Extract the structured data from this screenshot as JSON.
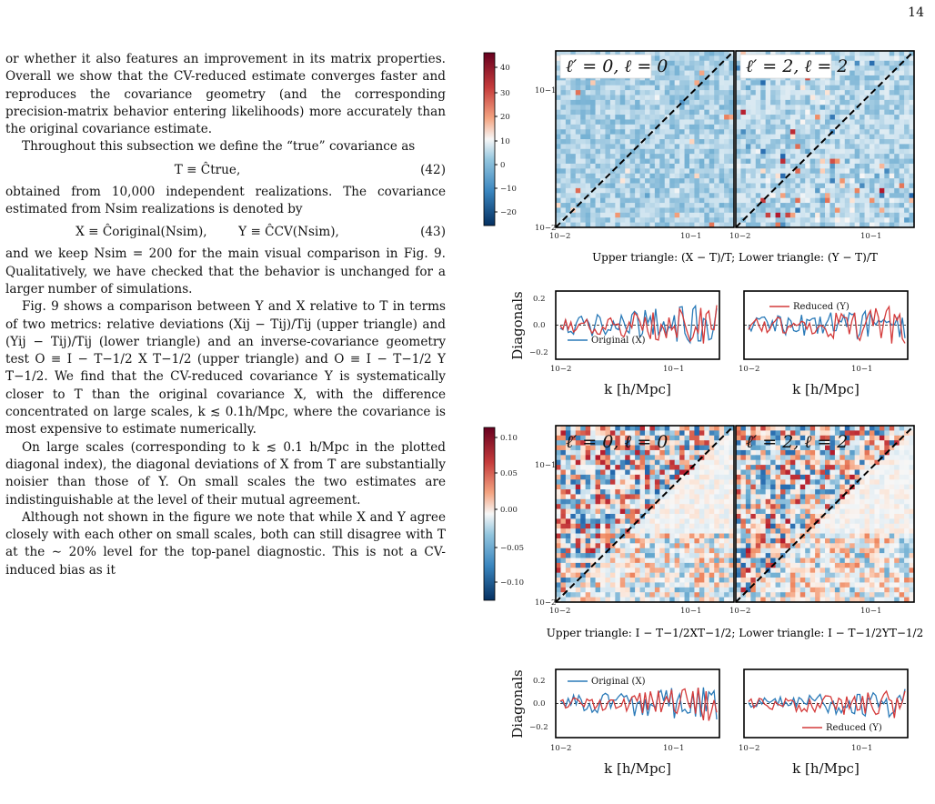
{
  "page": {
    "number": "14"
  },
  "text": {
    "p1": "or whether it also features an improvement in its matrix properties. Overall we show that the CV-reduced estimate converges faster and reproduces the covariance geometry (and the corresponding precision-matrix behavior entering likelihoods) more accurately than the original covariance estimate.",
    "p2": "Throughout this subsection we define the “true” covariance as",
    "eq42": "T ≡ Ĉtrue,",
    "eq42_num": "(42)",
    "p3": "obtained from 10,000 independent realizations. The covariance estimated from Nsim realizations is denoted by",
    "eq43a": "X ≡ Ĉoriginal(Nsim),",
    "eq43b": "Y ≡ ĈCV(Nsim),",
    "eq43_num": "(43)",
    "p4": "and we keep Nsim = 200 for the main visual comparison in Fig. 9. Qualitatively, we have checked that the behavior is unchanged for a larger number of simulations.",
    "p5": "Fig. 9 shows a comparison between Y and X relative to T in terms of two metrics: relative deviations (Xij − Tij)/Tij (upper triangle) and (Yij − Tij)/Tij (lower triangle) and an inverse-covariance geometry test O ≡ I − T−1/2 X T−1/2 (upper triangle) and O ≡ I − T−1/2 Y T−1/2. We find that the CV-reduced covariance Y is systematically closer to T than the original covariance X, with the difference concentrated on large scales, k ≲ 0.1h/Mpc, where the covariance is most expensive to estimate numerically.",
    "p6": "On large scales (corresponding to k ≲ 0.1 h/Mpc in the plotted diagonal index), the diagonal deviations of X from T are substantially noisier than those of Y. On small scales the two estimates are indistinguishable at the level of their mutual agreement.",
    "p7": "Although not shown in the figure we note that while X and Y agree closely with each other on small scales, both can still disagree with T at the ∼ 20% level for the top-panel diagnostic. This is not a CV-induced bias as it"
  },
  "figure": {
    "top_colorbar_ticks": [
      "40",
      "30",
      "20",
      "10",
      "0",
      "−10",
      "−20"
    ],
    "bottom_colorbar_ticks": [
      "0.10",
      "0.05",
      "0.00",
      "−0.05",
      "−0.10"
    ],
    "matrix_axis_ticks": {
      "y_top": "10−1",
      "y_bottom": "10−2",
      "x_left": "10−2",
      "x_right": "10−1"
    },
    "panel_labels": {
      "left": "ℓ′ = 0,  ℓ = 0",
      "right": "ℓ′ = 2,  ℓ = 2"
    },
    "caption_top": "Upper triangle: (X − T)/T; Lower triangle: (Y − T)/T",
    "caption_bottom": "Upper triangle: I − T−1/2XT−1/2; Lower triangle: I − T−1/2YT−1/2",
    "diag_ylabel": "Diagonals",
    "diag_yticks": [
      "0.2",
      "0.0",
      "−0.2"
    ],
    "diag_xticks": [
      "10−2",
      "10−1"
    ],
    "diag_xlabel": "k [h/Mpc]",
    "legend_original": "Original (X)",
    "legend_reduced": "Reduced (Y)",
    "colors": {
      "original": "#2a7ab8",
      "reduced": "#d43a3a"
    }
  }
}
